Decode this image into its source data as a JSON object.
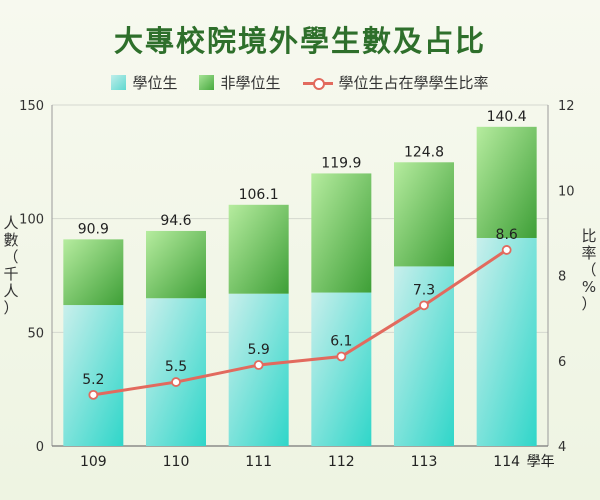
{
  "title": "大專校院境外學生數及占比",
  "legend": {
    "degree": "學位生",
    "non_degree": "非學位生",
    "ratio": "學位生占在學學生比率"
  },
  "axis_left_label": [
    "人",
    "數",
    "（",
    "千",
    "人",
    "）"
  ],
  "axis_right_label": [
    "比",
    "率",
    "（",
    "%",
    "）"
  ],
  "x_unit": "學年",
  "colors": {
    "title": "#2e6f2b",
    "degree_top": "#c9efec",
    "degree_bottom": "#2fd6c9",
    "nondegree_top": "#b6ec9f",
    "nondegree_bottom": "#3e9f37",
    "line": "#e26a5e"
  },
  "chart_data": {
    "type": "bar",
    "categories": [
      "109",
      "110",
      "111",
      "112",
      "113",
      "114"
    ],
    "series": [
      {
        "name": "學位生",
        "values": [
          62,
          65,
          67,
          67.5,
          79,
          91.5
        ]
      },
      {
        "name": "非學位生",
        "values": [
          28.9,
          29.6,
          39.1,
          52.4,
          45.8,
          48.9
        ]
      }
    ],
    "totals": [
      90.9,
      94.6,
      106.1,
      119.9,
      124.8,
      140.4
    ],
    "totals_labels": [
      "90.9",
      "94.6",
      "106.1",
      "119.9",
      "124.8",
      "140.4"
    ],
    "line_series": {
      "name": "學位生占在學學生比率",
      "values": [
        5.2,
        5.5,
        5.9,
        6.1,
        7.3,
        8.6
      ],
      "labels": [
        "5.2",
        "5.5",
        "5.9",
        "6.1",
        "7.3",
        "8.6"
      ]
    },
    "ylim": [
      0,
      150
    ],
    "y_ticks": [
      "0",
      "50",
      "100",
      "150"
    ],
    "y2lim": [
      4,
      12
    ],
    "y2_ticks": [
      "4",
      "6",
      "8",
      "10",
      "12"
    ],
    "grid": true
  }
}
